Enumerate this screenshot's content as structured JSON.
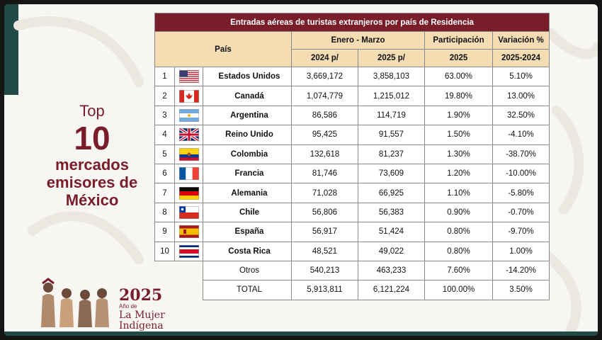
{
  "title": {
    "top": "Top",
    "number": "10",
    "line1": "mercados",
    "line2": "emisores de",
    "line3": "México"
  },
  "logo": {
    "year": "2025",
    "sub": "Año de",
    "name1": "La Mujer",
    "name2": "Indígena"
  },
  "table": {
    "title": "Entradas aéreas de turistas extranjeros por país de Residencia",
    "col_pais": "País",
    "col_period": "Enero - Marzo",
    "col_participacion": "Participación",
    "col_variacion": "Variación %",
    "sub_2024": "2024 p/",
    "sub_2025": "2025 p/",
    "sub_part": "2025",
    "sub_var": "2025-2024",
    "rows": [
      {
        "rank": "1",
        "flag": "us",
        "country": "Estados Unidos",
        "y2024": "3,669,172",
        "y2025": "3,858,103",
        "share": "63.00%",
        "change": "5.10%"
      },
      {
        "rank": "2",
        "flag": "ca",
        "country": "Canadá",
        "y2024": "1,074,779",
        "y2025": "1,215,012",
        "share": "19.80%",
        "change": "13.00%"
      },
      {
        "rank": "3",
        "flag": "ar",
        "country": "Argentina",
        "y2024": "86,586",
        "y2025": "114,719",
        "share": "1.90%",
        "change": "32.50%"
      },
      {
        "rank": "4",
        "flag": "gb",
        "country": "Reino Unido",
        "y2024": "95,425",
        "y2025": "91,557",
        "share": "1.50%",
        "change": "-4.10%"
      },
      {
        "rank": "5",
        "flag": "co",
        "country": "Colombia",
        "y2024": "132,618",
        "y2025": "81,237",
        "share": "1.30%",
        "change": "-38.70%"
      },
      {
        "rank": "6",
        "flag": "fr",
        "country": "Francia",
        "y2024": "81,746",
        "y2025": "73,609",
        "share": "1.20%",
        "change": "-10.00%"
      },
      {
        "rank": "7",
        "flag": "de",
        "country": "Alemania",
        "y2024": "71,028",
        "y2025": "66,925",
        "share": "1.10%",
        "change": "-5.80%"
      },
      {
        "rank": "8",
        "flag": "cl",
        "country": "Chile",
        "y2024": "56,806",
        "y2025": "56,383",
        "share": "0.90%",
        "change": "-0.70%"
      },
      {
        "rank": "9",
        "flag": "es",
        "country": "España",
        "y2024": "56,917",
        "y2025": "51,424",
        "share": "0.80%",
        "change": "-9.70%"
      },
      {
        "rank": "10",
        "flag": "cr",
        "country": "Costa Rica",
        "y2024": "48,521",
        "y2025": "49,022",
        "share": "0.80%",
        "change": "1.00%"
      }
    ],
    "otros": {
      "label": "Otros",
      "y2024": "540,213",
      "y2025": "463,233",
      "share": "7.60%",
      "change": "-14.20%"
    },
    "total": {
      "label": "TOTAL",
      "y2024": "5,913,811",
      "y2025": "6,121,224",
      "share": "100.00%",
      "change": "3.50%"
    }
  },
  "colors": {
    "header_bg": "#7a1d2a",
    "subheader_bg": "#f4dcb3",
    "accent": "#7a1d2a",
    "green": "#1f4a45"
  }
}
